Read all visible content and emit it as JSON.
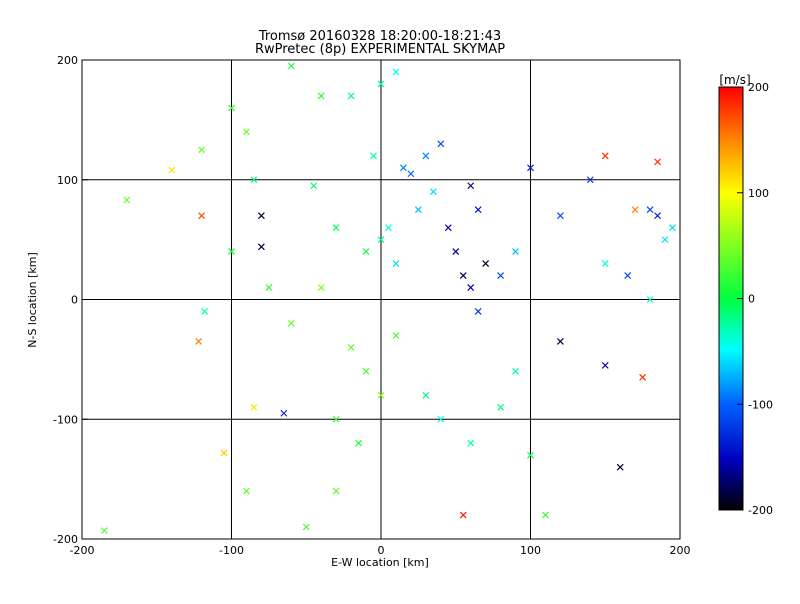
{
  "chart_data": {
    "type": "scatter",
    "title": "Tromsø 20160328 18:20:00-18:21:43",
    "subtitle": "RwPretec (8p) EXPERIMENTAL SKYMAP",
    "xlabel": "E-W location [km]",
    "ylabel": "N-S location [km]",
    "xlim": [
      -200,
      200
    ],
    "ylim": [
      -200,
      200
    ],
    "xticks": [
      -200,
      -100,
      0,
      100,
      200
    ],
    "yticks": [
      -200,
      -100,
      0,
      100,
      200
    ],
    "grid_lines_x": [
      -100,
      0,
      100
    ],
    "grid_lines_y": [
      -100,
      0,
      100
    ],
    "colorbar": {
      "label": "[m/s]",
      "range": [
        -200,
        200
      ],
      "ticks": [
        200,
        100,
        0,
        -100,
        -200
      ]
    },
    "points": [
      {
        "x": 0,
        "y": 50,
        "v": -20
      },
      {
        "x": 5,
        "y": 60,
        "v": -40
      },
      {
        "x": -10,
        "y": 40,
        "v": 10
      },
      {
        "x": 10,
        "y": 30,
        "v": -60
      },
      {
        "x": 15,
        "y": 110,
        "v": -90
      },
      {
        "x": 20,
        "y": 105,
        "v": -100
      },
      {
        "x": -5,
        "y": 120,
        "v": -30
      },
      {
        "x": 0,
        "y": 180,
        "v": -30
      },
      {
        "x": 10,
        "y": 190,
        "v": -50
      },
      {
        "x": -20,
        "y": 170,
        "v": -20
      },
      {
        "x": 30,
        "y": 120,
        "v": -90
      },
      {
        "x": 40,
        "y": 130,
        "v": -110
      },
      {
        "x": 50,
        "y": 40,
        "v": -160
      },
      {
        "x": 55,
        "y": 20,
        "v": -180
      },
      {
        "x": 60,
        "y": 10,
        "v": -150
      },
      {
        "x": 70,
        "y": 30,
        "v": -190
      },
      {
        "x": 45,
        "y": 60,
        "v": -150
      },
      {
        "x": 65,
        "y": -10,
        "v": -120
      },
      {
        "x": 80,
        "y": 20,
        "v": -110
      },
      {
        "x": 90,
        "y": 40,
        "v": -70
      },
      {
        "x": 100,
        "y": 110,
        "v": -130
      },
      {
        "x": 120,
        "y": 70,
        "v": -110
      },
      {
        "x": 140,
        "y": 100,
        "v": -120
      },
      {
        "x": 180,
        "y": 75,
        "v": -110
      },
      {
        "x": 185,
        "y": 70,
        "v": -130
      },
      {
        "x": 195,
        "y": 60,
        "v": -60
      },
      {
        "x": 190,
        "y": 50,
        "v": -60
      },
      {
        "x": 180,
        "y": 0,
        "v": -40
      },
      {
        "x": 165,
        "y": 20,
        "v": -110
      },
      {
        "x": 150,
        "y": 30,
        "v": -40
      },
      {
        "x": 185,
        "y": 115,
        "v": 180
      },
      {
        "x": 150,
        "y": 120,
        "v": 180
      },
      {
        "x": 170,
        "y": 75,
        "v": 150
      },
      {
        "x": 175,
        "y": -65,
        "v": 180
      },
      {
        "x": 150,
        "y": -55,
        "v": -160
      },
      {
        "x": 160,
        "y": -140,
        "v": -190
      },
      {
        "x": 120,
        "y": -35,
        "v": -180
      },
      {
        "x": -10,
        "y": -60,
        "v": 30
      },
      {
        "x": -20,
        "y": -40,
        "v": 40
      },
      {
        "x": 0,
        "y": -80,
        "v": 50
      },
      {
        "x": -30,
        "y": -100,
        "v": 20
      },
      {
        "x": -15,
        "y": -120,
        "v": 10
      },
      {
        "x": 10,
        "y": -30,
        "v": 30
      },
      {
        "x": -40,
        "y": 10,
        "v": 50
      },
      {
        "x": -60,
        "y": -20,
        "v": 40
      },
      {
        "x": -75,
        "y": 10,
        "v": 20
      },
      {
        "x": -100,
        "y": 40,
        "v": 10
      },
      {
        "x": -120,
        "y": 70,
        "v": 170
      },
      {
        "x": -122,
        "y": -35,
        "v": 150
      },
      {
        "x": -118,
        "y": -10,
        "v": -30
      },
      {
        "x": -140,
        "y": 108,
        "v": 110
      },
      {
        "x": -170,
        "y": 83,
        "v": 40
      },
      {
        "x": -185,
        "y": -193,
        "v": 30
      },
      {
        "x": -105,
        "y": -128,
        "v": 120
      },
      {
        "x": -85,
        "y": -90,
        "v": 110
      },
      {
        "x": -65,
        "y": -95,
        "v": -130
      },
      {
        "x": -90,
        "y": -160,
        "v": 40
      },
      {
        "x": -80,
        "y": 70,
        "v": -190
      },
      {
        "x": -80,
        "y": 44,
        "v": -180
      },
      {
        "x": -60,
        "y": 195,
        "v": 10
      },
      {
        "x": -40,
        "y": 170,
        "v": 20
      },
      {
        "x": -90,
        "y": 140,
        "v": 40
      },
      {
        "x": -100,
        "y": 160,
        "v": 20
      },
      {
        "x": -120,
        "y": 125,
        "v": 40
      },
      {
        "x": -85,
        "y": 100,
        "v": -10
      },
      {
        "x": -45,
        "y": 95,
        "v": -10
      },
      {
        "x": -30,
        "y": 60,
        "v": 0
      },
      {
        "x": 25,
        "y": 75,
        "v": -70
      },
      {
        "x": 35,
        "y": 90,
        "v": -60
      },
      {
        "x": 60,
        "y": 95,
        "v": -170
      },
      {
        "x": 65,
        "y": 75,
        "v": -140
      },
      {
        "x": 30,
        "y": -80,
        "v": -20
      },
      {
        "x": 40,
        "y": -100,
        "v": -40
      },
      {
        "x": 60,
        "y": -120,
        "v": -30
      },
      {
        "x": 80,
        "y": -90,
        "v": -20
      },
      {
        "x": 90,
        "y": -60,
        "v": -30
      },
      {
        "x": 100,
        "y": -130,
        "v": -10
      },
      {
        "x": 110,
        "y": -180,
        "v": 20
      },
      {
        "x": 55,
        "y": -180,
        "v": 190
      },
      {
        "x": -30,
        "y": -160,
        "v": 40
      },
      {
        "x": -50,
        "y": -190,
        "v": 30
      }
    ]
  }
}
